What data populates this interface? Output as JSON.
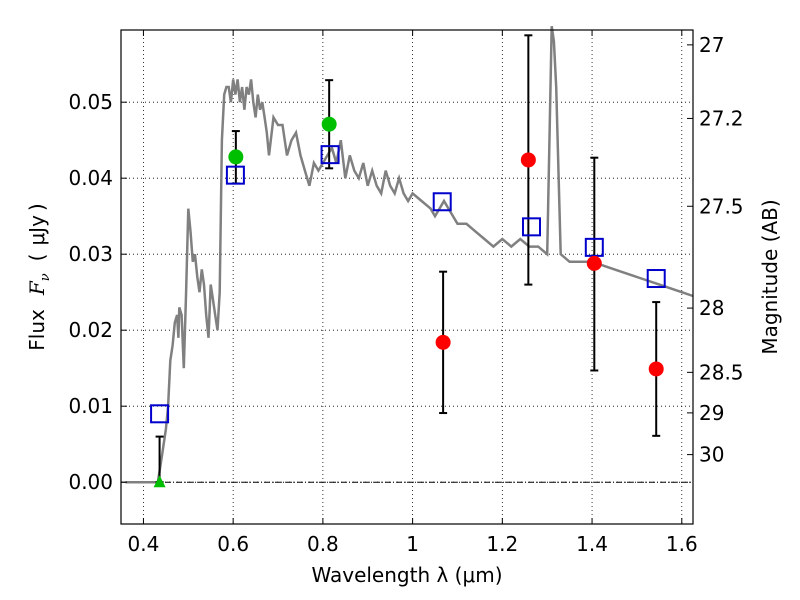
{
  "chart_data": {
    "type": "scatter",
    "xlabel": "Wavelength  λ (μm)",
    "ylabel_parts": {
      "flux": "Flux",
      "fnu_main": "F",
      "fnu_sub": "ν",
      "open": "(",
      "unit": "μJy",
      "close": ")"
    },
    "right_ylabel": "Magnitude (AB)",
    "xlim": [
      0.35,
      1.625
    ],
    "ylim": [
      -0.0055,
      0.0595
    ],
    "x_ticks": [
      {
        "value": 0.4,
        "label": "0.4"
      },
      {
        "value": 0.6,
        "label": "0.6"
      },
      {
        "value": 0.8,
        "label": "0.8"
      },
      {
        "value": 1.0,
        "label": "1"
      },
      {
        "value": 1.2,
        "label": "1.2"
      },
      {
        "value": 1.4,
        "label": "1.4"
      },
      {
        "value": 1.6,
        "label": "1.6"
      }
    ],
    "y_ticks": [
      {
        "value": 0.0,
        "label": "0.00"
      },
      {
        "value": 0.01,
        "label": "0.01"
      },
      {
        "value": 0.02,
        "label": "0.02"
      },
      {
        "value": 0.03,
        "label": "0.03"
      },
      {
        "value": 0.04,
        "label": "0.04"
      },
      {
        "value": 0.05,
        "label": "0.05"
      }
    ],
    "right_ticks": [
      {
        "value": 27.0,
        "label": "27"
      },
      {
        "value": 27.2,
        "label": "27.2"
      },
      {
        "value": 27.5,
        "label": "27.5"
      },
      {
        "value": 28.0,
        "label": "28"
      },
      {
        "value": 28.5,
        "label": "28.5"
      },
      {
        "value": 29.0,
        "label": "29"
      },
      {
        "value": 30.0,
        "label": "30"
      }
    ],
    "grid": true,
    "zero_line": true,
    "colors": {
      "model": "#808080",
      "green": "#00bf00",
      "red": "#ff0000",
      "box": "#0000cc",
      "error": "#000000"
    },
    "model_spectrum": {
      "name": "template",
      "x": [
        0.36,
        0.41,
        0.432,
        0.44,
        0.45,
        0.455,
        0.46,
        0.465,
        0.47,
        0.475,
        0.478,
        0.48,
        0.485,
        0.49,
        0.495,
        0.5,
        0.505,
        0.51,
        0.515,
        0.52,
        0.525,
        0.53,
        0.535,
        0.54,
        0.545,
        0.55,
        0.555,
        0.56,
        0.565,
        0.57,
        0.575,
        0.58,
        0.585,
        0.59,
        0.595,
        0.6,
        0.605,
        0.61,
        0.615,
        0.62,
        0.625,
        0.63,
        0.635,
        0.64,
        0.645,
        0.65,
        0.655,
        0.66,
        0.665,
        0.67,
        0.675,
        0.68,
        0.69,
        0.7,
        0.71,
        0.72,
        0.73,
        0.74,
        0.75,
        0.76,
        0.77,
        0.78,
        0.79,
        0.8,
        0.81,
        0.82,
        0.83,
        0.84,
        0.85,
        0.86,
        0.87,
        0.88,
        0.89,
        0.9,
        0.91,
        0.92,
        0.93,
        0.94,
        0.95,
        0.96,
        0.97,
        0.98,
        0.99,
        1.0,
        1.02,
        1.04,
        1.05,
        1.06,
        1.07,
        1.08,
        1.1,
        1.12,
        1.14,
        1.16,
        1.18,
        1.2,
        1.22,
        1.24,
        1.26,
        1.28,
        1.3,
        1.31,
        1.315,
        1.32,
        1.33,
        1.35,
        1.4,
        1.45,
        1.5,
        1.55,
        1.6,
        1.625
      ],
      "y": [
        0.0,
        0.0,
        0.0,
        0.003,
        0.007,
        0.01,
        0.016,
        0.018,
        0.021,
        0.022,
        0.019,
        0.023,
        0.022,
        0.015,
        0.025,
        0.036,
        0.033,
        0.029,
        0.03,
        0.027,
        0.025,
        0.028,
        0.026,
        0.022,
        0.019,
        0.026,
        0.024,
        0.022,
        0.02,
        0.025,
        0.045,
        0.051,
        0.052,
        0.052,
        0.05,
        0.053,
        0.051,
        0.053,
        0.05,
        0.052,
        0.049,
        0.052,
        0.051,
        0.053,
        0.05,
        0.048,
        0.051,
        0.049,
        0.05,
        0.048,
        0.046,
        0.043,
        0.048,
        0.047,
        0.047,
        0.043,
        0.045,
        0.046,
        0.043,
        0.041,
        0.039,
        0.042,
        0.041,
        0.042,
        0.043,
        0.044,
        0.042,
        0.045,
        0.04,
        0.043,
        0.041,
        0.04,
        0.042,
        0.039,
        0.041,
        0.039,
        0.038,
        0.041,
        0.039,
        0.038,
        0.04,
        0.038,
        0.037,
        0.038,
        0.037,
        0.036,
        0.035,
        0.036,
        0.037,
        0.036,
        0.034,
        0.034,
        0.033,
        0.032,
        0.031,
        0.032,
        0.031,
        0.032,
        0.031,
        0.031,
        0.03,
        0.06,
        0.058,
        0.052,
        0.03,
        0.029,
        0.029,
        0.028,
        0.027,
        0.026,
        0.025,
        0.0245
      ]
    },
    "green_points": [
      {
        "x": 0.606,
        "y": 0.0428
      },
      {
        "x": 0.814,
        "y": 0.0471
      }
    ],
    "green_upper_limit": {
      "x": 0.436,
      "y": 0.0
    },
    "red_points": [
      {
        "x": 1.068,
        "y": 0.0184
      },
      {
        "x": 1.258,
        "y": 0.0424
      },
      {
        "x": 1.405,
        "y": 0.0288
      },
      {
        "x": 1.543,
        "y": 0.0149
      }
    ],
    "model_photometry": [
      {
        "x": 0.436,
        "y": 0.009
      },
      {
        "x": 0.605,
        "y": 0.0404
      },
      {
        "x": 0.816,
        "y": 0.0431
      },
      {
        "x": 1.066,
        "y": 0.0369
      },
      {
        "x": 1.265,
        "y": 0.0336
      },
      {
        "x": 1.405,
        "y": 0.0309
      },
      {
        "x": 1.543,
        "y": 0.0268
      }
    ],
    "error_bars": [
      {
        "x": 0.436,
        "low": 0.0,
        "high": 0.006
      },
      {
        "x": 0.606,
        "low": 0.0393,
        "high": 0.0462
      },
      {
        "x": 0.814,
        "low": 0.0413,
        "high": 0.0529
      },
      {
        "x": 1.068,
        "low": 0.0091,
        "high": 0.0277
      },
      {
        "x": 1.258,
        "low": 0.026,
        "high": 0.0588
      },
      {
        "x": 1.405,
        "low": 0.0147,
        "high": 0.0427
      },
      {
        "x": 1.543,
        "low": 0.0061,
        "high": 0.0237
      }
    ]
  }
}
